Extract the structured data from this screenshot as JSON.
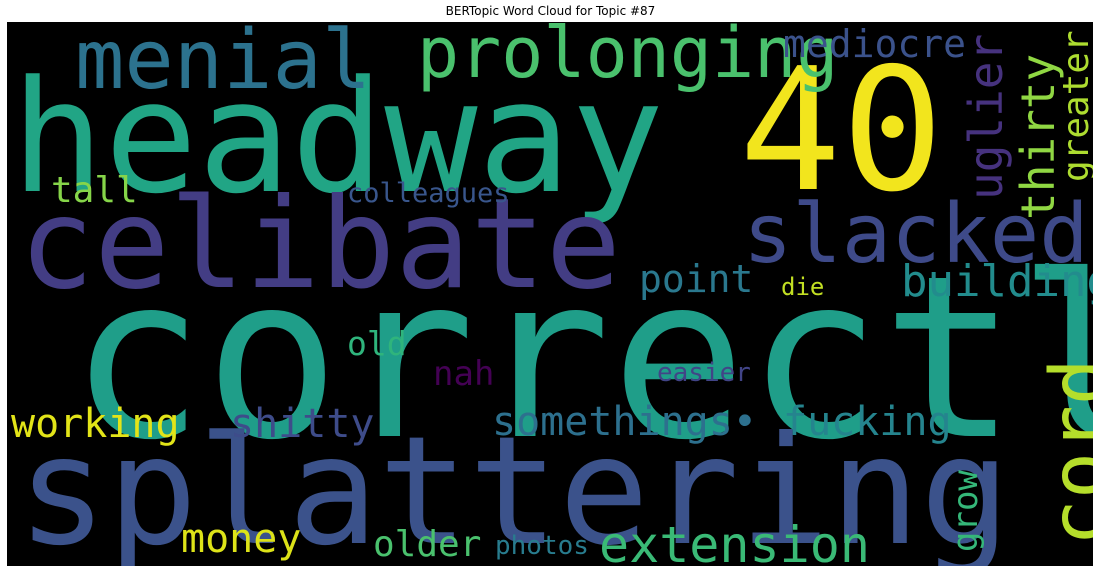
{
  "chart_data": {
    "type": "wordcloud",
    "title": "BERTopic Word Cloud for Topic #87",
    "background": "#000000",
    "colormap": "viridis",
    "words": [
      {
        "text": "correctly",
        "color": "#1f9e89"
      },
      {
        "text": "headway",
        "color": "#21a585"
      },
      {
        "text": "splattering",
        "color": "#3b528b"
      },
      {
        "text": "celibate",
        "color": "#433d84"
      },
      {
        "text": "40",
        "color": "#f2e51d"
      },
      {
        "text": "slacked",
        "color": "#3e4a89"
      },
      {
        "text": "prolonging",
        "color": "#4ac16d"
      },
      {
        "text": "menial",
        "color": "#2c728e"
      },
      {
        "text": "cord",
        "color": "#b5de2b"
      },
      {
        "text": "extension",
        "color": "#3aba76"
      },
      {
        "text": "building",
        "color": "#228c8d"
      },
      {
        "text": "mediocre",
        "color": "#3b528b"
      },
      {
        "text": "uglier",
        "color": "#46327e"
      },
      {
        "text": "thirty",
        "color": "#90d743"
      },
      {
        "text": "greater",
        "color": "#addc30"
      },
      {
        "text": "somethings•",
        "color": "#2d708e"
      },
      {
        "text": "fucking",
        "color": "#25848e"
      },
      {
        "text": "shitty",
        "color": "#3e4c8a"
      },
      {
        "text": "working",
        "color": "#e2e418"
      },
      {
        "text": "money",
        "color": "#dde318"
      },
      {
        "text": "older",
        "color": "#4ac16d"
      },
      {
        "text": "point",
        "color": "#2a788e"
      },
      {
        "text": "tall",
        "color": "#86d549"
      },
      {
        "text": "colleagues",
        "color": "#39568c"
      },
      {
        "text": "old",
        "color": "#2fb47c"
      },
      {
        "text": "nah",
        "color": "#440154"
      },
      {
        "text": "easier",
        "color": "#414487"
      },
      {
        "text": "die",
        "color": "#c2df23"
      },
      {
        "text": "grow",
        "color": "#35b779"
      },
      {
        "text": "photos",
        "color": "#287c8e"
      }
    ]
  }
}
